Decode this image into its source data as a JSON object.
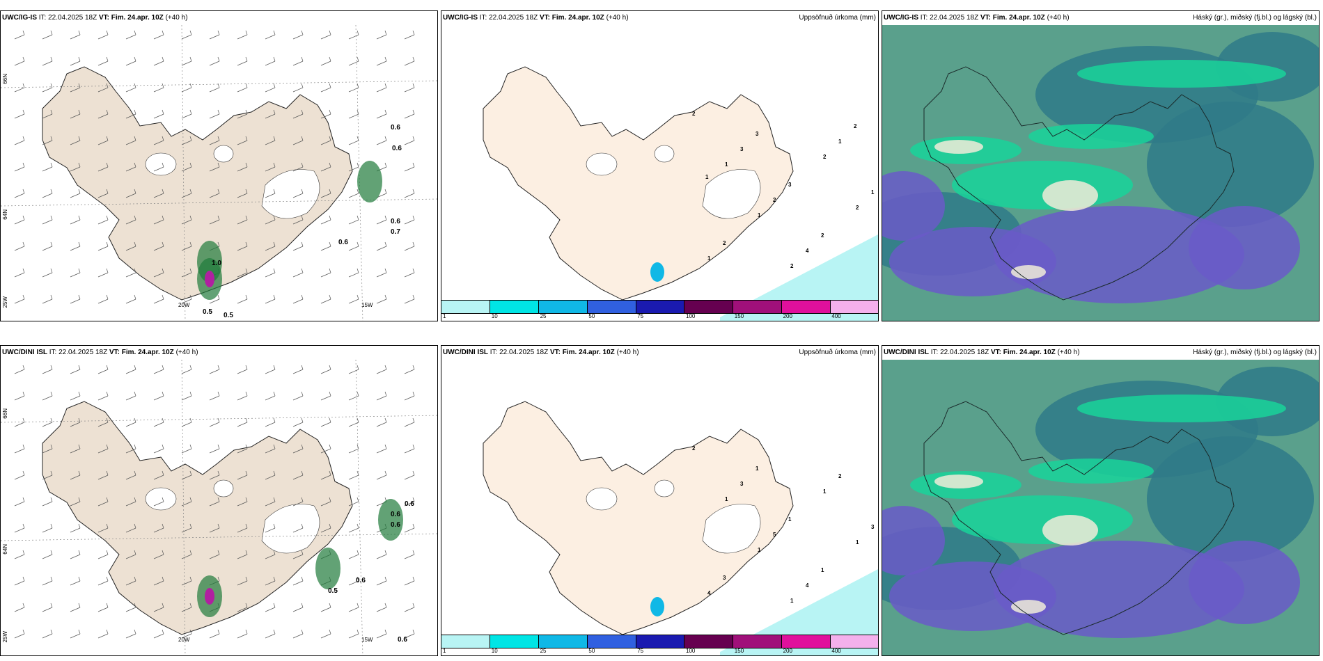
{
  "panels": [
    {
      "model": "UWC/IG-IS",
      "it_label": "IT:",
      "it": "22.04.2025 18Z",
      "vt_label": "VT:",
      "vt": "Fim. 24.apr. 10Z",
      "lead": "(+40 h)",
      "right": "",
      "kind": "wind"
    },
    {
      "model": "UWC/IG-IS",
      "it_label": "IT:",
      "it": "22.04.2025 18Z",
      "vt_label": "VT:",
      "vt": "Fim. 24.apr. 10Z",
      "lead": "(+40 h)",
      "right": "Uppsöfnuð úrkoma (mm)",
      "kind": "precip"
    },
    {
      "model": "UWC/IG-IS",
      "it_label": "IT:",
      "it": "22.04.2025 18Z",
      "vt_label": "VT:",
      "vt": "Fim. 24.apr. 10Z",
      "lead": "(+40 h)",
      "right": "Háský (gr.), miðský (fj.bl.) og lágský (bl.)",
      "kind": "cloud"
    },
    {
      "model": "UWC/DINI ISL",
      "it_label": "IT:",
      "it": "22.04.2025 18Z",
      "vt_label": "VT:",
      "vt": "Fim. 24.apr. 10Z",
      "lead": "(+40 h)",
      "right": "",
      "kind": "wind"
    },
    {
      "model": "UWC/DINI ISL",
      "it_label": "IT:",
      "it": "22.04.2025 18Z",
      "vt_label": "VT:",
      "vt": "Fim. 24.apr. 10Z",
      "lead": "(+40 h)",
      "right": "Uppsöfnuð úrkoma (mm)",
      "kind": "precip"
    },
    {
      "model": "UWC/DINI ISL",
      "it_label": "IT:",
      "it": "22.04.2025 18Z",
      "vt_label": "VT:",
      "vt": "Fim. 24.apr. 10Z",
      "lead": "(+40 h)",
      "right": "Háský (gr.), miðský (fj.bl.) og lágský (bl.)",
      "kind": "cloud"
    }
  ],
  "axis_labels": {
    "lon_20w": "20W",
    "lon_15w": "15W",
    "lat_66n": "66N",
    "lat_64n": "64N",
    "lat_25w": "25W"
  },
  "colorbar": {
    "labels": [
      "1",
      "10",
      "25",
      "50",
      "75",
      "100",
      "150",
      "200",
      "400"
    ],
    "colors": [
      "#b8f4f4",
      "#00e5e5",
      "#10b8e6",
      "#3060e0",
      "#1a1ab0",
      "#660050",
      "#a0107a",
      "#e0109c",
      "#f4b0ec"
    ]
  },
  "wind_precip_labels": {
    "top": [
      "0.6",
      "0.6",
      "0.7",
      "0.6",
      "0.6",
      "0.5",
      "0.5",
      "1.0"
    ],
    "bottom": [
      "0.6",
      "0.6",
      "0.5",
      "0.6",
      "0.6",
      "0.6"
    ]
  },
  "precip_labels": {
    "top": [
      "2",
      "1",
      "1",
      "2",
      "2",
      "2",
      "1",
      "3",
      "2",
      "4",
      "1",
      "1",
      "2",
      "3",
      "3",
      "2",
      "2",
      "1"
    ],
    "bottom": [
      "2",
      "1",
      "1",
      "1",
      "1",
      "1",
      "4",
      "3",
      "5",
      "4",
      "2",
      "3",
      "3",
      "1",
      "1",
      "1"
    ]
  },
  "colors": {
    "land": "#ede1d3",
    "land_precip": "#fcefe2",
    "cloud_bg": "#5aa08c",
    "cloud_dark": "#2f7a88",
    "cloud_purple": "#6a5bc8",
    "cloud_green": "#19d39a",
    "cloud_white": "#f0ebd8"
  }
}
